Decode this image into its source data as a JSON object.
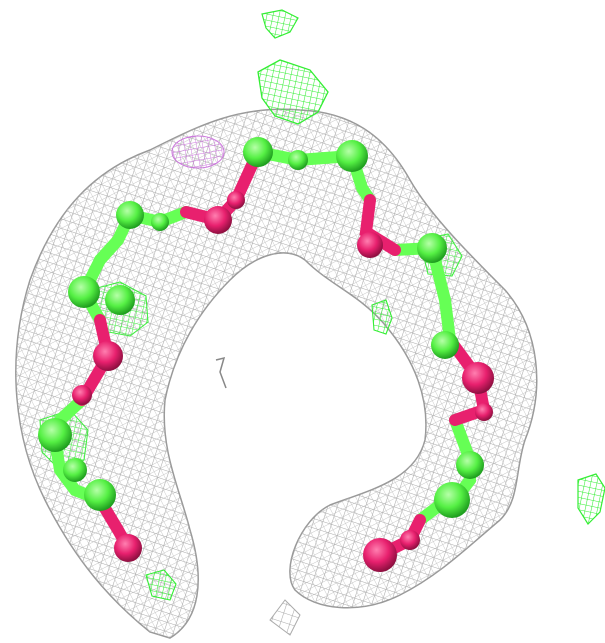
{
  "scene": {
    "background": "#ffffff",
    "colors": {
      "density_mesh": "#a9a9a9",
      "difference_positive": "#33ee33",
      "difference_faint": "#cc77dd",
      "chain_green": "#66ff55",
      "chain_magenta": "#e8206e",
      "ion_sphere": "#33dd33"
    },
    "objects": {
      "density_mesh": "electron-density-mesh",
      "chain": "ball-and-stick-chain",
      "ion": "ion-sphere",
      "difference_blobs": "difference-density-blobs"
    }
  }
}
